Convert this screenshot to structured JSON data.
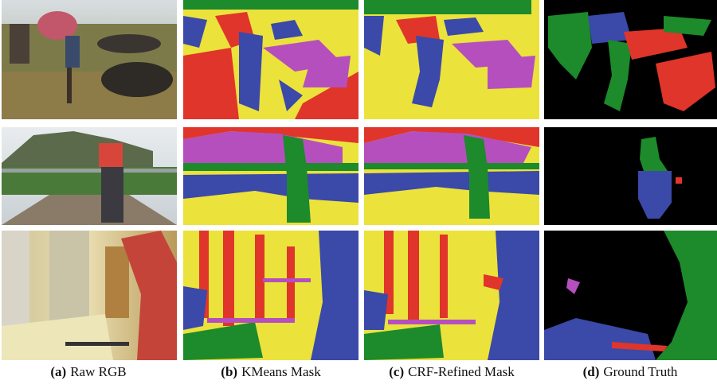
{
  "captions": [
    {
      "tag": "(a)",
      "text": "Raw RGB"
    },
    {
      "tag": "(b)",
      "text": "KMeans Mask"
    },
    {
      "tag": "(c)",
      "text": "CRF-Refined Mask"
    },
    {
      "tag": "(d)",
      "text": "Ground Truth"
    }
  ]
}
